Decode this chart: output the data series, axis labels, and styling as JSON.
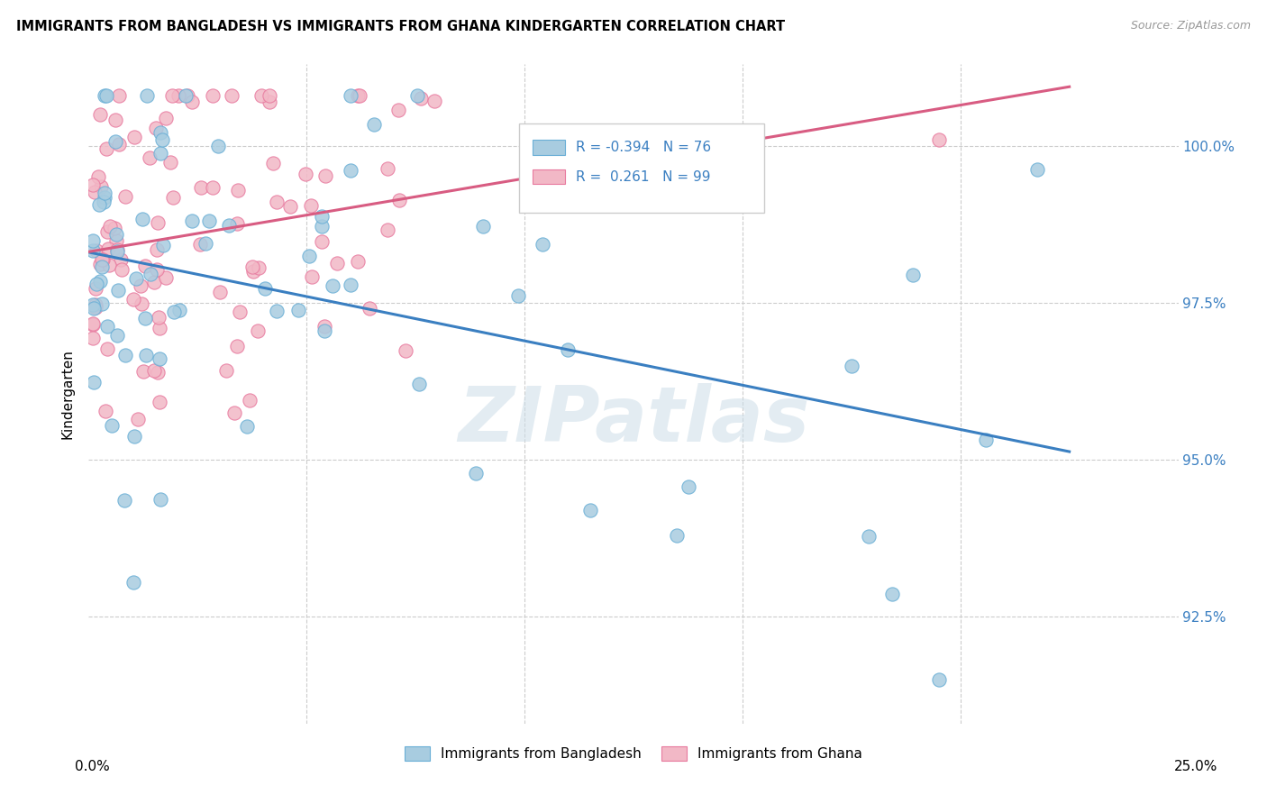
{
  "title": "IMMIGRANTS FROM BANGLADESH VS IMMIGRANTS FROM GHANA KINDERGARTEN CORRELATION CHART",
  "source": "Source: ZipAtlas.com",
  "ylabel": "Kindergarten",
  "xlim": [
    0.0,
    0.25
  ],
  "ylim": [
    90.8,
    101.3
  ],
  "ytick_vals": [
    92.5,
    95.0,
    97.5,
    100.0
  ],
  "ytick_labels": [
    "92.5%",
    "95.0%",
    "97.5%",
    "100.0%"
  ],
  "xtick_label_left": "0.0%",
  "xtick_label_right": "25.0%",
  "R_bangladesh": -0.394,
  "N_bangladesh": 76,
  "R_ghana": 0.261,
  "N_ghana": 99,
  "color_bangladesh": "#a8cce0",
  "color_ghana": "#f2b8c6",
  "edge_bangladesh": "#6aafd6",
  "edge_ghana": "#e87a9f",
  "trendline_color_bangladesh": "#3a7fc1",
  "trendline_color_ghana": "#d85c82",
  "watermark": "ZIPatlas",
  "legend_label_bangladesh": "Immigrants from Bangladesh",
  "legend_label_ghana": "Immigrants from Ghana"
}
